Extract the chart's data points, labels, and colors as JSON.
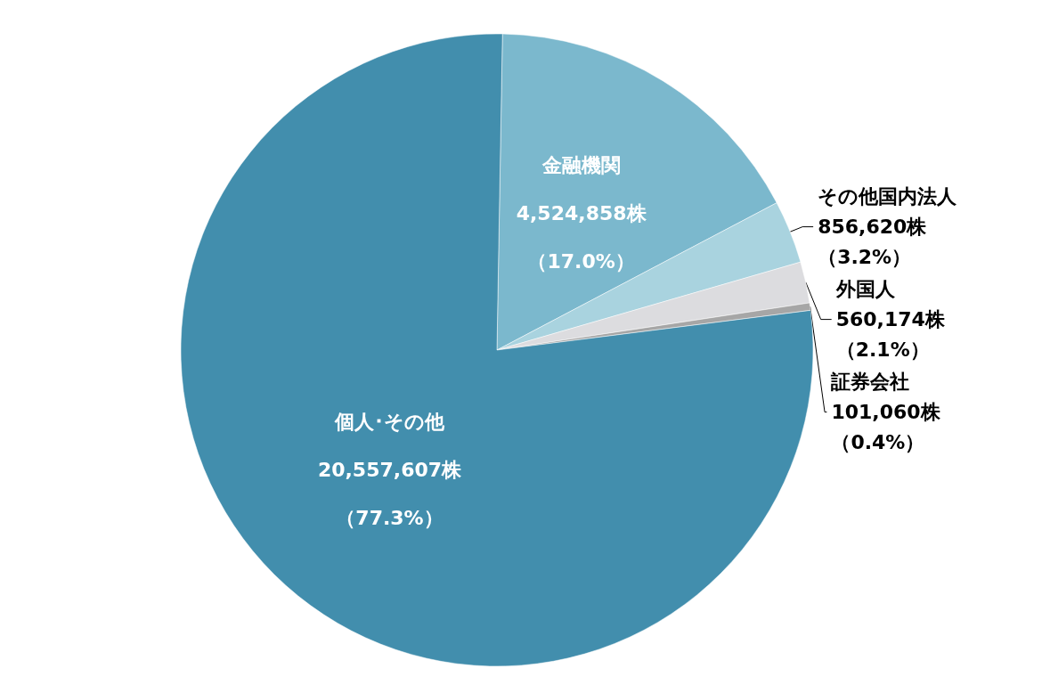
{
  "chart_data": {
    "type": "pie",
    "categories": [
      "金融機関",
      "その他国内法人",
      "外国人",
      "証券会社",
      "個人･その他"
    ],
    "values": [
      4524858,
      856620,
      560174,
      101060,
      20557607
    ],
    "colors": [
      "#7bb8cd",
      "#a9d3df",
      "#dcdcdf",
      "#a6a6a6",
      "#428ead"
    ],
    "value_labels": [
      "4,524,858株",
      "856,620株",
      "560,174株",
      "101,060株",
      "20,557,607株"
    ],
    "annotations": [
      "（17.0%）",
      "（3.2%）",
      "（2.1%）",
      "（0.4%）",
      "（77.3%）"
    ],
    "legend": false
  }
}
